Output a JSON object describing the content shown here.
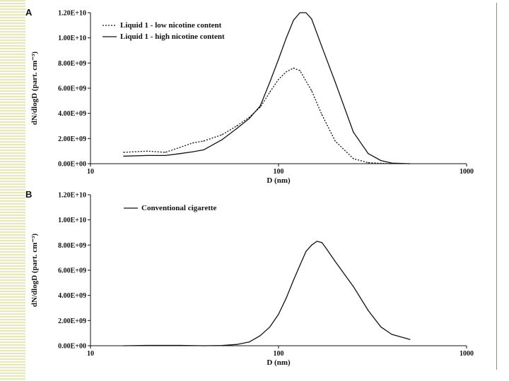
{
  "chart_data": [
    {
      "type": "line",
      "panel_label": "A",
      "xlabel": "D (nm)",
      "ylabel": "dN/dlogD (part. cm⁻³)",
      "x_scale": "log",
      "xlim": [
        10,
        1000
      ],
      "ylim": [
        0,
        12000000000
      ],
      "x_tick_labels": [
        "10",
        "100",
        "1000"
      ],
      "y_tick_labels": [
        "0.00E+00",
        "2.00E+09",
        "4.00E+09",
        "6.00E+09",
        "8.00E+09",
        "1.00E+10",
        "1.20E+10"
      ],
      "legend_position": "top-left",
      "series": [
        {
          "name": "Liquid 1 - low nicotine content",
          "style": "dotted",
          "x": [
            15,
            20,
            25,
            30,
            35,
            40,
            50,
            60,
            70,
            80,
            90,
            100,
            110,
            120,
            130,
            150,
            170,
            200,
            250,
            300,
            400
          ],
          "y": [
            900000000,
            1000000000,
            900000000,
            1300000000,
            1650000000,
            1800000000,
            2300000000,
            3000000000,
            3700000000,
            4500000000,
            5700000000,
            6700000000,
            7300000000,
            7600000000,
            7400000000,
            5800000000,
            3900000000,
            1800000000,
            400000000,
            80000000,
            0
          ]
        },
        {
          "name": "Liquid 1 - high nicotine content",
          "style": "solid",
          "x": [
            15,
            20,
            25,
            30,
            35,
            40,
            50,
            60,
            70,
            80,
            90,
            100,
            110,
            120,
            130,
            140,
            150,
            170,
            200,
            250,
            300,
            350,
            400,
            500
          ],
          "y": [
            600000000,
            650000000,
            650000000,
            800000000,
            950000000,
            1100000000,
            1900000000,
            2800000000,
            3600000000,
            4600000000,
            6500000000,
            8300000000,
            10000000000,
            11400000000,
            12000000000,
            12000000000,
            11500000000,
            9300000000,
            6500000000,
            2500000000,
            800000000,
            250000000,
            50000000,
            0
          ]
        }
      ]
    },
    {
      "type": "line",
      "panel_label": "B",
      "xlabel": "D (nm)",
      "ylabel": "dN/dlogD (part. cm⁻³)",
      "x_scale": "log",
      "xlim": [
        10,
        1000
      ],
      "ylim": [
        0,
        12000000000
      ],
      "x_tick_labels": [
        "10",
        "100",
        "1000"
      ],
      "y_tick_labels": [
        "0.00E+00",
        "2.00E+09",
        "4.00E+09",
        "6.00E+09",
        "8.00E+09",
        "1.00E+10",
        "1.20E+10"
      ],
      "legend_position": "top-left",
      "series": [
        {
          "name": "Conventional cigarette",
          "style": "solid",
          "x": [
            15,
            20,
            30,
            40,
            50,
            60,
            70,
            80,
            90,
            100,
            110,
            120,
            130,
            140,
            150,
            160,
            170,
            180,
            200,
            250,
            300,
            350,
            400,
            500
          ],
          "y": [
            0,
            30000000,
            30000000,
            0,
            20000000,
            100000000,
            300000000,
            800000000,
            1500000000,
            2500000000,
            3800000000,
            5200000000,
            6400000000,
            7500000000,
            8000000000,
            8300000000,
            8200000000,
            7700000000,
            6700000000,
            4700000000,
            2800000000,
            1500000000,
            900000000,
            500000000
          ]
        }
      ]
    }
  ]
}
